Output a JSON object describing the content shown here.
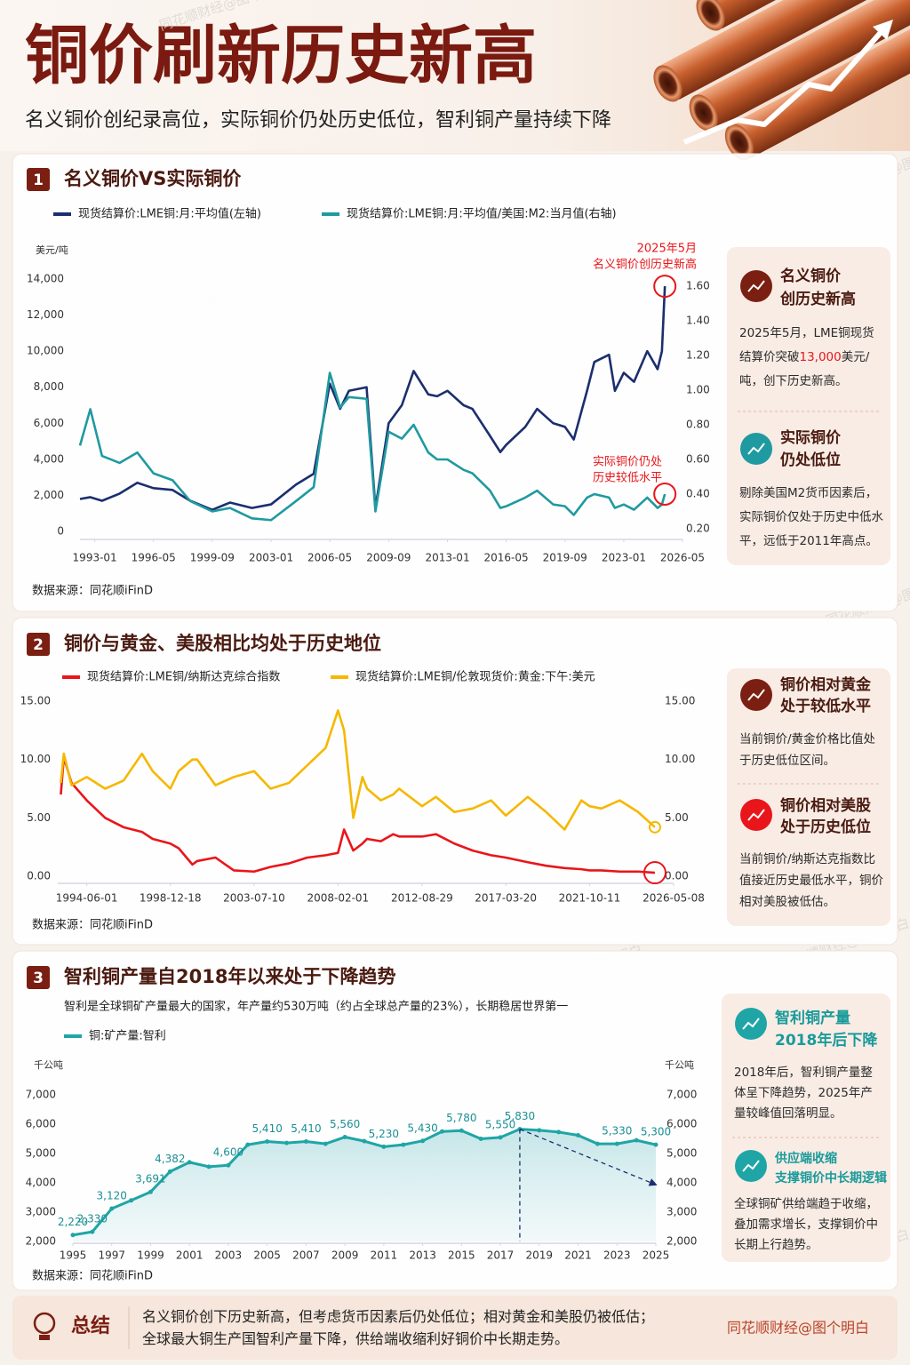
{
  "header": {
    "title": "铜价刷新历史新高",
    "subtitle": "名义铜价创纪录高位，实际铜价仍处历史低位，智利铜产量持续下降"
  },
  "watermark": "同花顺财经@图个明白",
  "chart_data": [
    {
      "type": "line",
      "number": "1",
      "title": "名义铜价VS实际铜价",
      "ylabel": "美元/吨",
      "source": "数据来源：同花顺iFinD",
      "x": [
        "1992-03",
        "1992-10",
        "1993-06",
        "1994-06",
        "1995-06",
        "1996-05",
        "1997-06",
        "1998-06",
        "1999-09",
        "2000-09",
        "2001-12",
        "2003-01",
        "2004-06",
        "2005-06",
        "2006-05",
        "2006-12",
        "2007-06",
        "2008-06",
        "2008-12",
        "2009-09",
        "2010-06",
        "2011-02",
        "2011-12",
        "2012-06",
        "2013-01",
        "2013-12",
        "2014-06",
        "2015-06",
        "2016-01",
        "2016-05",
        "2017-06",
        "2018-02",
        "2019-01",
        "2019-09",
        "2020-03",
        "2020-12",
        "2021-05",
        "2022-03",
        "2022-07",
        "2023-01",
        "2023-08",
        "2024-05",
        "2024-12",
        "2025-03",
        "2025-05"
      ],
      "xlim": [
        "1992-03",
        "2026-05"
      ],
      "xticks": [
        "1993-01",
        "1996-05",
        "1999-09",
        "2003-01",
        "2006-05",
        "2009-09",
        "2013-01",
        "2016-05",
        "2019-09",
        "2023-01",
        "2026-05"
      ],
      "ylim": [
        0,
        14000
      ],
      "yticks": [
        0,
        {
          "value": 2000,
          "label": "2,000"
        },
        {
          "value": 4000,
          "label": "4,000"
        },
        {
          "value": 6000,
          "label": "6,000"
        },
        {
          "value": 8000,
          "label": "8,000"
        },
        {
          "value": 10000,
          "label": "10,000"
        },
        {
          "value": 12000,
          "label": "12,000"
        },
        {
          "value": 14000,
          "label": "14,000"
        }
      ],
      "y2lim": [
        0.2,
        1.6
      ],
      "y2ticks": [
        {
          "value": 0.2,
          "label": "0.20"
        },
        {
          "value": 0.4,
          "label": "0.40"
        },
        {
          "value": 0.6,
          "label": "0.60"
        },
        {
          "value": 0.8,
          "label": "0.80"
        },
        {
          "value": 1.0,
          "label": "1.00"
        },
        {
          "value": 1.2,
          "label": "1.20"
        },
        {
          "value": 1.4,
          "label": "1.40"
        },
        {
          "value": 1.6,
          "label": "1.60"
        }
      ],
      "series": [
        {
          "name": "现货结算价:LME铜:月:平均值(左轴)",
          "color": "#1b2f6e",
          "values": [
            1800,
            1900,
            1700,
            2100,
            2700,
            2400,
            2300,
            1700,
            1200,
            1600,
            1300,
            1500,
            2600,
            3200,
            8200,
            6800,
            7800,
            8000,
            1300,
            6000,
            7000,
            8900,
            7600,
            7500,
            7800,
            7000,
            6800,
            5300,
            4400,
            4800,
            5800,
            6800,
            6000,
            5800,
            5100,
            7800,
            9400,
            9800,
            7800,
            8800,
            8300,
            10000,
            9000,
            10000,
            13600
          ]
        },
        {
          "name": "现货结算价:LME铜:月:平均值/美国:M2:当月值(右轴)",
          "color": "#1f9aa0",
          "axis": "y2",
          "values": [
            0.68,
            0.89,
            0.62,
            0.58,
            0.64,
            0.52,
            0.48,
            0.36,
            0.3,
            0.32,
            0.26,
            0.25,
            0.36,
            0.44,
            1.1,
            0.9,
            0.96,
            0.95,
            0.3,
            0.76,
            0.72,
            0.8,
            0.64,
            0.6,
            0.6,
            0.54,
            0.52,
            0.42,
            0.32,
            0.33,
            0.38,
            0.42,
            0.34,
            0.33,
            0.28,
            0.38,
            0.4,
            0.38,
            0.32,
            0.34,
            0.31,
            0.38,
            0.32,
            0.34,
            0.4
          ]
        }
      ],
      "annotations": [
        {
          "lines": [
            "2025年5月",
            "名义铜价创历史新高"
          ],
          "color": "#e8161b"
        },
        {
          "lines": [
            "实际铜价仍处",
            "历史较低水平"
          ],
          "color": "#e8161b"
        }
      ],
      "cards": [
        {
          "title": [
            "名义铜价",
            "创历史新高"
          ],
          "color": "#7a1f12",
          "title_color": "#4a1a10",
          "body": [
            {
              "text": "2025年5月，LME铜现货结算价突破"
            },
            {
              "text": "13,000",
              "color": "#e8161b"
            },
            {
              "text": "美元/吨，创下历史新高。"
            }
          ]
        },
        {
          "title": [
            "实际铜价",
            "仍处低位"
          ],
          "color": "#1f9aa0",
          "title_color": "#4a1a10",
          "body": [
            {
              "text": "剔除美国M2货币因素后，实际铜价仅处于历史中低水平，远低于2011年高点。"
            }
          ]
        }
      ]
    },
    {
      "type": "line",
      "number": "2",
      "title": "铜价与黄金、美股相比均处于历史地位",
      "source": "数据来源：同花顺iFinD",
      "x": [
        "1993-01-01",
        "1993-03-01",
        "1993-08-01",
        "1994-06-01",
        "1995-06-01",
        "1996-06-01",
        "1997-06-01",
        "1998-01-01",
        "1998-12-18",
        "1999-06-01",
        "2000-03-01",
        "2000-06-01",
        "2001-06-01",
        "2002-06-01",
        "2003-07-10",
        "2004-06-01",
        "2005-06-01",
        "2006-06-01",
        "2007-06-01",
        "2008-02-01",
        "2008-06-01",
        "2008-12-01",
        "2009-06-01",
        "2009-09-01",
        "2010-06-01",
        "2011-02-01",
        "2011-06-01",
        "2012-08-29",
        "2013-06-01",
        "2014-06-01",
        "2015-06-01",
        "2016-06-01",
        "2017-03-20",
        "2018-06-01",
        "2019-06-01",
        "2020-06-01",
        "2021-05-01",
        "2021-10-11",
        "2022-06-01",
        "2023-06-01",
        "2024-06-01",
        "2025-05-01"
      ],
      "xlim": [
        "1992-11-01",
        "2026-05-08"
      ],
      "xticks": [
        "1994-06-01",
        "1998-12-18",
        "2003-07-10",
        "2008-02-01",
        "2012-08-29",
        "2017-03-20",
        "2021-10-11",
        "2026-05-08"
      ],
      "ylim": [
        0,
        15
      ],
      "yticks": [
        {
          "value": 0,
          "label": "0.00"
        },
        {
          "value": 5,
          "label": "5.00"
        },
        {
          "value": 10,
          "label": "10.00"
        },
        {
          "value": 15,
          "label": "15.00"
        }
      ],
      "series": [
        {
          "name": "现货结算价:LME铜/纳斯达克综合指数",
          "color": "#e8161b",
          "values": [
            7.0,
            10.2,
            8.0,
            6.5,
            5.0,
            4.2,
            3.8,
            3.2,
            2.8,
            2.4,
            1.0,
            1.3,
            1.6,
            0.5,
            0.4,
            0.8,
            1.1,
            1.6,
            1.8,
            2.0,
            4.0,
            2.2,
            2.8,
            3.2,
            3.0,
            3.6,
            3.4,
            3.4,
            3.6,
            2.8,
            2.2,
            1.8,
            1.6,
            1.2,
            0.9,
            0.7,
            0.6,
            0.5,
            0.5,
            0.4,
            0.4,
            0.3
          ]
        },
        {
          "name": "现货结算价:LME铜/伦敦现货价:黄金:下午:美元",
          "color": "#f5b800",
          "values": [
            8.0,
            10.5,
            7.8,
            8.5,
            7.5,
            8.2,
            10.5,
            9.0,
            7.5,
            9.0,
            10.0,
            10.0,
            7.8,
            8.5,
            9.0,
            7.5,
            8.0,
            9.5,
            11.0,
            14.2,
            12.5,
            5.0,
            8.5,
            7.5,
            6.5,
            7.0,
            7.5,
            6.0,
            6.8,
            5.5,
            5.8,
            6.5,
            5.2,
            6.8,
            5.5,
            4.0,
            6.5,
            6.0,
            5.8,
            6.5,
            5.5,
            4.2
          ]
        }
      ],
      "cards": [
        {
          "title": [
            "铜价相对黄金",
            "处于较低水平"
          ],
          "color": "#7a1f12",
          "title_color": "#4a1a10",
          "body": [
            {
              "text": "当前铜价/黄金价格比值处于历史低位区间。"
            }
          ]
        },
        {
          "title": [
            "铜价相对美股",
            "处于历史低位"
          ],
          "color": "#e8161b",
          "title_color": "#4a1a10",
          "body": [
            {
              "text": "当前铜价/纳斯达克指数比值接近历史最低水平，铜价相对美股被低估。"
            }
          ]
        }
      ]
    },
    {
      "type": "area",
      "number": "3",
      "title": "智利铜产量自2018年以来处于下降趋势",
      "subtitle": "智利是全球铜矿产量最大的国家，年产量约530万吨（约占全球总产量的23%），长期稳居世界第一",
      "ylabel": "千公吨",
      "source": "数据来源：同花顺iFinD",
      "x": [
        1995,
        1996,
        1997,
        1998,
        1999,
        2000,
        2001,
        2002,
        2003,
        2004,
        2005,
        2006,
        2007,
        2008,
        2009,
        2010,
        2011,
        2012,
        2013,
        2014,
        2015,
        2016,
        2017,
        2018,
        2019,
        2020,
        2021,
        2022,
        2023,
        2024,
        2025
      ],
      "xlim": [
        1995,
        2025
      ],
      "xticks": [
        1995,
        1997,
        1999,
        2001,
        2003,
        2005,
        2007,
        2009,
        2011,
        2013,
        2015,
        2017,
        2019,
        2021,
        2023,
        2025
      ],
      "ylim": [
        2000,
        7000
      ],
      "yticks": [
        {
          "value": 2000,
          "label": "2,000"
        },
        {
          "value": 3000,
          "label": "3,000"
        },
        {
          "value": 4000,
          "label": "4,000"
        },
        {
          "value": 5000,
          "label": "5,000"
        },
        {
          "value": 6000,
          "label": "6,000"
        },
        {
          "value": 7000,
          "label": "7,000"
        }
      ],
      "series": [
        {
          "name": "铜:矿产量:智利",
          "color": "#1fa5a5",
          "values": [
            2220,
            2330,
            3120,
            3400,
            3691,
            4382,
            4700,
            4550,
            4600,
            5300,
            5410,
            5360,
            5410,
            5330,
            5560,
            5420,
            5230,
            5300,
            5430,
            5750,
            5780,
            5500,
            5550,
            5830,
            5790,
            5730,
            5620,
            5330,
            5330,
            5450,
            5300
          ],
          "value_labels": [
            "2,220",
            "2,330",
            "3,120",
            null,
            "3,691",
            "4,382",
            null,
            null,
            "4,600",
            null,
            "5,410",
            null,
            "5,410",
            null,
            "5,560",
            null,
            "5,230",
            null,
            "5,430",
            null,
            "5,780",
            null,
            "5,550",
            "5,830",
            null,
            null,
            null,
            null,
            "5,330",
            null,
            "5,300"
          ]
        }
      ],
      "cards": [
        {
          "title": [
            "智利铜产量",
            "2018年后下降"
          ],
          "color": "#1fa5a5",
          "title_color": "#1a9a9a",
          "body": [
            {
              "text": "2018年后，智利铜产量整体呈下降趋势，2025年产量较峰值回落明显。"
            }
          ]
        },
        {
          "title": [
            "供应端收缩",
            "支撑铜价中长期逻辑"
          ],
          "color": "#1fa5a5",
          "title_color": "#1a9a9a",
          "body": [
            {
              "text": "全球铜矿供给端趋于收缩，叠加需求增长，支撑铜价中长期上行趋势。"
            }
          ]
        }
      ]
    }
  ],
  "summary": {
    "title": "总结",
    "lines": [
      "名义铜价创下历史新高，但考虑货币因素后仍处低位；相对黄金和美股仍被低估；",
      "全球最大铜生产国智利产量下降，供给端收缩利好铜价中长期走势。"
    ],
    "credit": "同花顺财经@图个明白"
  }
}
